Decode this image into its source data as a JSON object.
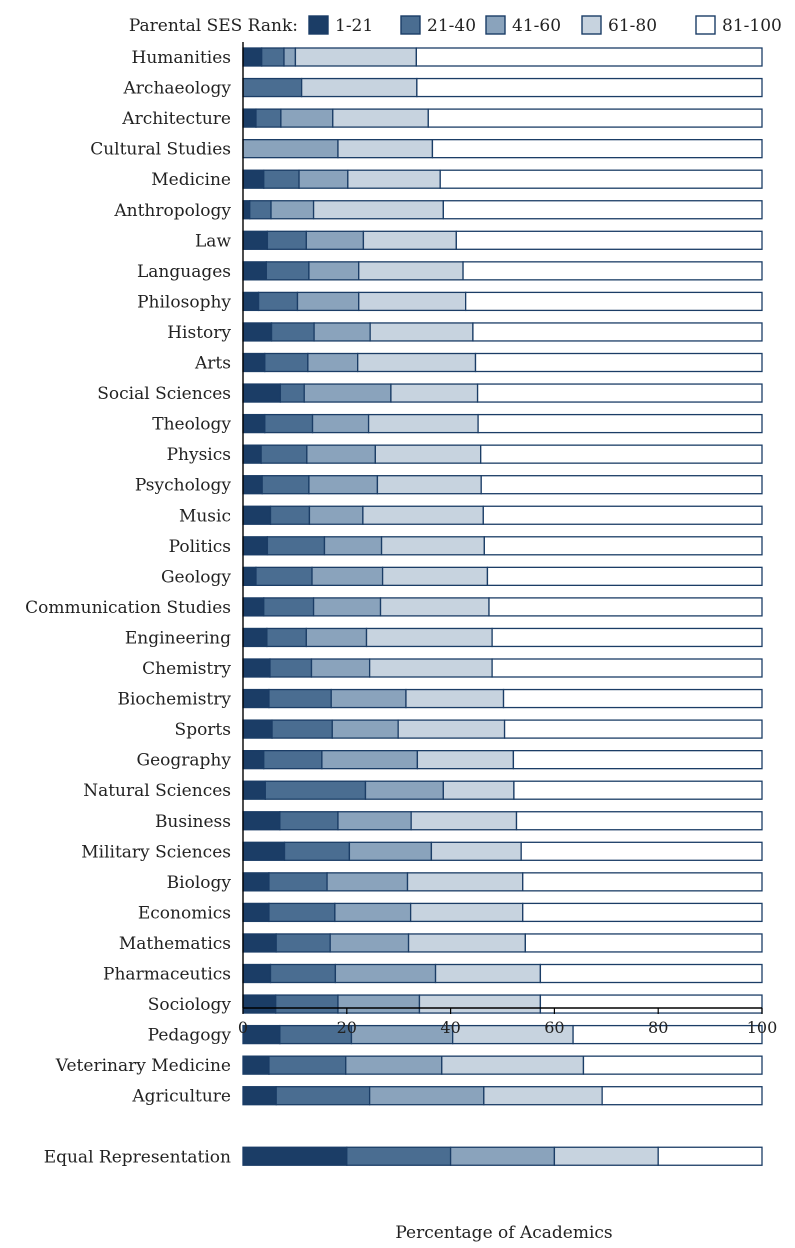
{
  "chart_data": {
    "type": "bar",
    "orientation": "horizontal",
    "stacked": true,
    "legend": {
      "title": "Parental SES Rank:",
      "placement": "top"
    },
    "categories": [
      "Humanities",
      "Archaeology",
      "Architecture",
      "Cultural Studies",
      "Medicine",
      "Anthropology",
      "Law",
      "Languages",
      "Philosophy",
      "History",
      "Arts",
      "Social Sciences",
      "Theology",
      "Physics",
      "Psychology",
      "Music",
      "Politics",
      "Geology",
      "Communication Studies",
      "Engineering",
      "Chemistry",
      "Biochemistry",
      "Sports",
      "Geography",
      "Natural Sciences",
      "Business",
      "Military Sciences",
      "Biology",
      "Economics",
      "Mathematics",
      "Pharmaceutics",
      "Sociology",
      "Pedagogy",
      "Veterinary Medicine",
      "Agriculture",
      "Equal Representation"
    ],
    "series": [
      {
        "name": "1-21",
        "color": "#1b3d66",
        "values": [
          3.6,
          0,
          2.5,
          0,
          4,
          1.3,
          4.7,
          4.5,
          3,
          5.5,
          4.2,
          7.2,
          4.2,
          3.5,
          3.7,
          5.3,
          4.7,
          2.5,
          4,
          4.6,
          5.2,
          5,
          5.6,
          4,
          4.3,
          7.1,
          8,
          5,
          5,
          6.4,
          5.3,
          6.3,
          7.1,
          5,
          6.4,
          20
        ]
      },
      {
        "name": "21-40",
        "color": "#4a6d91",
        "values": [
          4.3,
          11.3,
          4.8,
          0,
          6.8,
          4.1,
          7.5,
          8.2,
          7.5,
          8.2,
          8.3,
          4.6,
          9.2,
          8.8,
          9,
          7.5,
          11,
          10.8,
          9.6,
          7.6,
          8,
          12,
          11.6,
          11.2,
          19.3,
          11.2,
          12.5,
          11.2,
          12.7,
          10.4,
          12.5,
          12,
          13.8,
          14.8,
          18,
          20
        ]
      },
      {
        "name": "41-60",
        "color": "#8aa3bc",
        "values": [
          2.2,
          0,
          10,
          18.3,
          9.4,
          8.2,
          11,
          9.6,
          11.8,
          10.8,
          9.6,
          16.7,
          10.8,
          13.2,
          13.2,
          10.3,
          11,
          13.6,
          12.9,
          11.6,
          11.2,
          14.4,
          12.7,
          18.4,
          15,
          14.1,
          15.8,
          15.5,
          14.6,
          15.1,
          19.3,
          15.7,
          19.5,
          18.5,
          22,
          20
        ]
      },
      {
        "name": "61-80",
        "color": "#c7d3df",
        "values": [
          23.3,
          22.2,
          18.4,
          18.2,
          17.8,
          25,
          17.9,
          20.1,
          20.6,
          19.8,
          22.7,
          16.7,
          21.1,
          20.3,
          20,
          23.2,
          19.8,
          20.2,
          20.9,
          24.2,
          23.6,
          18.8,
          20.5,
          18.5,
          13.6,
          20.3,
          17.3,
          22.2,
          21.6,
          22.5,
          20.2,
          23.3,
          23.2,
          27.3,
          22.8,
          20
        ]
      },
      {
        "name": "81-100",
        "color": "#ffffff",
        "values": [
          66.6,
          66.5,
          64.3,
          63.5,
          62,
          61.4,
          58.9,
          57.6,
          57.1,
          55.7,
          55.2,
          54.8,
          54.7,
          54.2,
          54.1,
          53.7,
          53.5,
          52.9,
          52.6,
          52,
          52,
          49.8,
          49.6,
          47.9,
          47.8,
          47.3,
          46.4,
          46.1,
          46.1,
          45.6,
          42.7,
          42.7,
          36.4,
          34.4,
          30.8,
          20
        ]
      }
    ],
    "xlabel": "Percentage of Academics",
    "ylabel": "",
    "xlim": [
      0,
      100
    ],
    "xticks": [
      "0",
      "20",
      "40",
      "60",
      "80",
      "100"
    ],
    "grid": false,
    "edge_color": "#1b3d66"
  }
}
